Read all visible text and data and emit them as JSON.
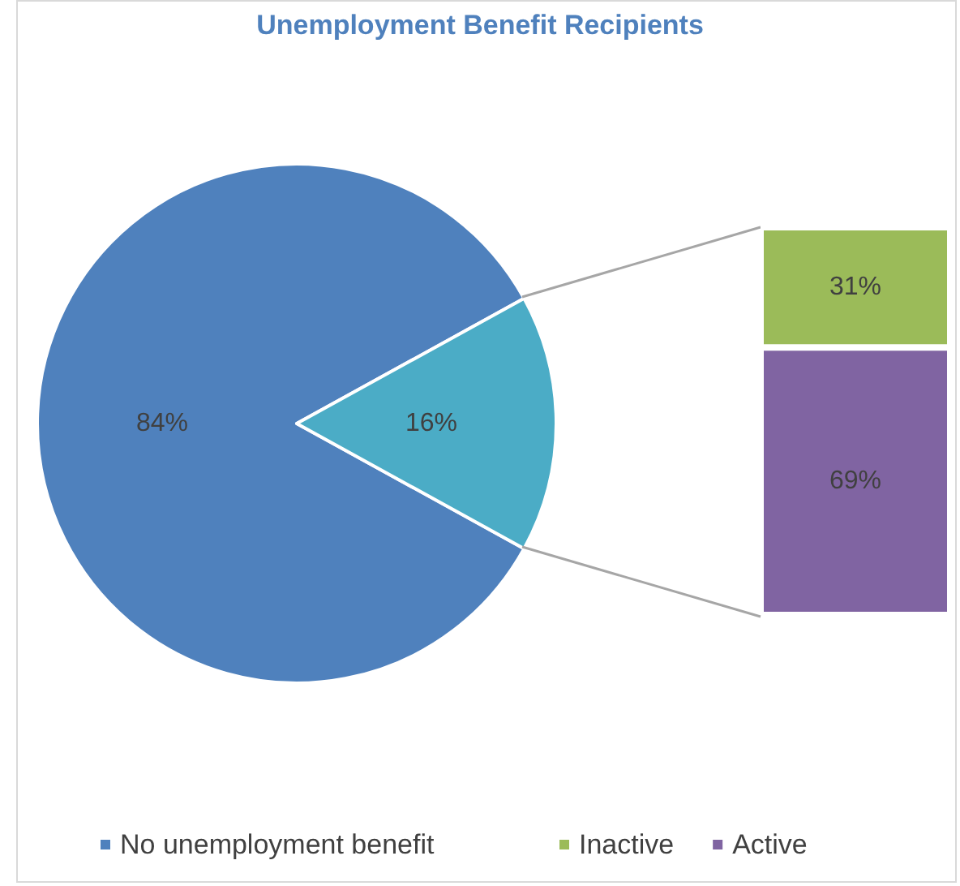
{
  "chart_data": [
    {
      "type": "pie",
      "title": "Unemployment Benefit Recipients",
      "categories": [
        "No unemployment benefit",
        null
      ],
      "values": [
        84,
        16
      ],
      "value_labels": [
        "84%",
        "16%"
      ],
      "colors": [
        "#4f81bd",
        "#4bacc6"
      ],
      "legend": "bottom"
    },
    {
      "type": "bar",
      "stacked": true,
      "categories": [
        null
      ],
      "series": [
        {
          "name": "Active",
          "color": "#8064a2",
          "values": [
            69
          ],
          "value_labels": [
            "69%"
          ]
        },
        {
          "name": "Inactive",
          "color": "#9bbb59",
          "values": [
            31
          ],
          "value_labels": [
            "31%"
          ]
        }
      ],
      "legend": "bottom"
    }
  ]
}
